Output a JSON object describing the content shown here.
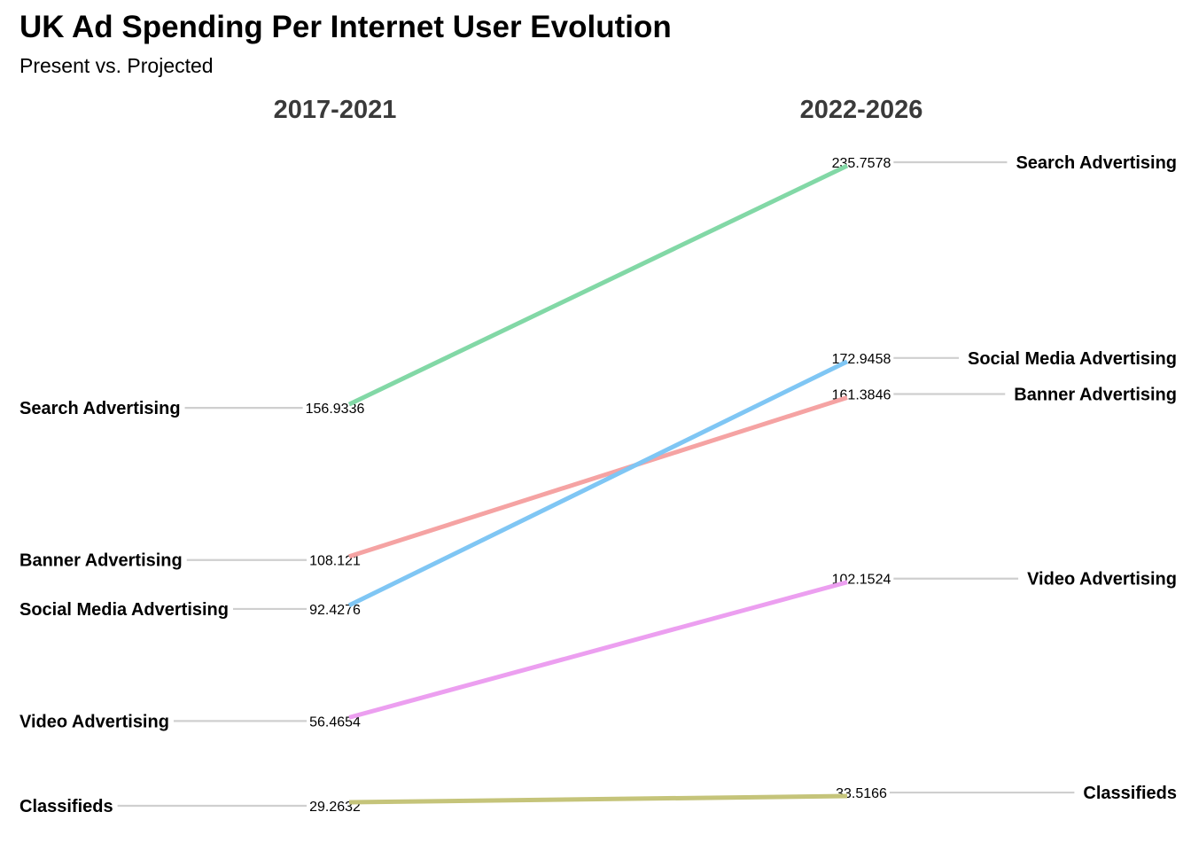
{
  "chart_data": {
    "type": "line",
    "title": "UK Ad Spending Per Internet User Evolution",
    "subtitle": "Present vs. Projected",
    "categories": [
      "2017-2021",
      "2022-2026"
    ],
    "series": [
      {
        "name": "Search Advertising",
        "values": [
          156.9336,
          235.7578
        ],
        "color": "#82d8a6"
      },
      {
        "name": "Banner Advertising",
        "values": [
          108.121,
          161.3846
        ],
        "color": "#f5a3a3"
      },
      {
        "name": "Social Media Advertising",
        "values": [
          92.4276,
          172.9458
        ],
        "color": "#7fc6f4"
      },
      {
        "name": "Video Advertising",
        "values": [
          56.4654,
          102.1524
        ],
        "color": "#ec9ff0"
      },
      {
        "name": "Classifieds",
        "values": [
          29.2632,
          33.5166
        ],
        "color": "#c5c47a"
      }
    ],
    "value_labels_left": [
      "156.9336",
      "108.121",
      "92.4276",
      "56.4654",
      "29.2632"
    ],
    "value_labels_right": [
      "235.7578",
      "161.3846",
      "172.9458",
      "102.1524",
      "33.5166"
    ],
    "grid": false,
    "legend": "none"
  }
}
